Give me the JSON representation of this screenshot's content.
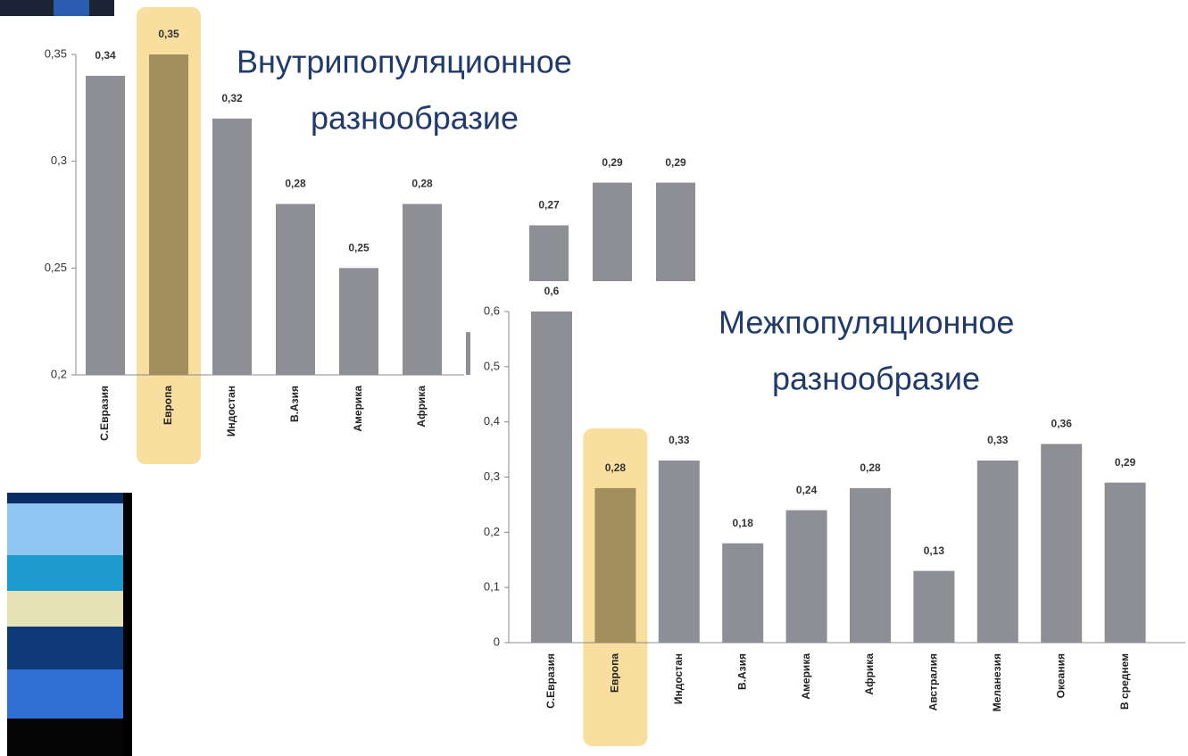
{
  "chart_data": [
    {
      "type": "bar",
      "annotations": [
        "Внутрипопуляционное",
        "разнообразие"
      ],
      "categories": [
        "С.Евразия",
        "Европа",
        "Индостан",
        "В.Азия",
        "Америка",
        "Африка",
        null,
        null,
        null,
        null
      ],
      "values": [
        0.34,
        0.35,
        0.32,
        0.28,
        0.25,
        0.28,
        0.22,
        0.27,
        0.29,
        0.29
      ],
      "value_labels": [
        "0,34",
        "0,35",
        "0,32",
        "0,28",
        "0,25",
        "0,28",
        null,
        "0,27",
        "0,29",
        "0,29"
      ],
      "ylim": [
        0.2,
        0.35
      ],
      "yticks": [
        {
          "value": 0.2,
          "label": "0,2"
        },
        {
          "value": 0.25,
          "label": "0,25"
        },
        {
          "value": 0.3,
          "label": "0,3"
        },
        {
          "value": 0.35,
          "label": "0,35"
        }
      ],
      "color": "#8e8e95",
      "highlight_index": 1,
      "highlight_color": "#a28e5c",
      "highlight_background": "#f8dfa0"
    },
    {
      "type": "bar",
      "annotations": [
        "Межпопуляционное",
        "разнообразие"
      ],
      "categories": [
        "С.Евразия",
        "Европа",
        "Индостан",
        "В.Азия",
        "Америка",
        "Африка",
        "Австралия",
        "Меланезия",
        "Океания",
        "В среднем"
      ],
      "values": [
        0.6,
        0.28,
        0.33,
        0.18,
        0.24,
        0.28,
        0.13,
        0.33,
        0.36,
        0.29
      ],
      "value_labels": [
        "0,6",
        "0,28",
        "0,33",
        "0,18",
        "0,24",
        "0,28",
        "0,13",
        "0,33",
        "0,36",
        "0,29"
      ],
      "ylim": [
        0,
        0.6
      ],
      "yticks": [
        0,
        {
          "value": 0.1,
          "label": "0,1"
        },
        {
          "value": 0.2,
          "label": "0,2"
        },
        {
          "value": 0.3,
          "label": "0,3"
        },
        {
          "value": 0.4,
          "label": "0,4"
        },
        {
          "value": 0.5,
          "label": "0,5"
        },
        {
          "value": 0.6,
          "label": "0,6"
        }
      ],
      "color": "#8e8e95",
      "highlight_index": 1,
      "highlight_color": "#a28e5c",
      "highlight_background": "#f8dfa0"
    }
  ]
}
